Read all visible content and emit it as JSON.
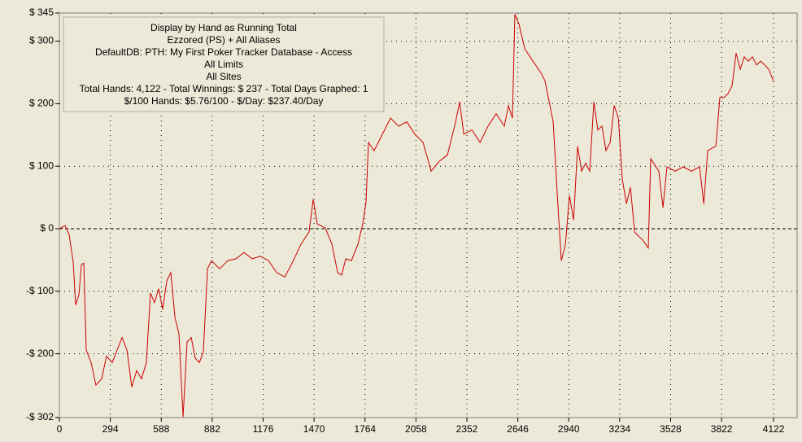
{
  "chart_data": {
    "type": "line",
    "annotations": [
      "Display by Hand as Running Total",
      "Ezzored (PS) + All Aliases",
      "DefaultDB: PTH: My First Poker Tracker Database - Access",
      "All Limits",
      "All Sites",
      "Total Hands: 4,122 - Total Winnings: $ 237 - Total Days Graphed: 1",
      "$/100 Hands: $5.76/100 - $/Day: $237.40/Day"
    ],
    "x": [
      0,
      33,
      56,
      80,
      94,
      113,
      127,
      141,
      155,
      183,
      211,
      244,
      272,
      305,
      333,
      362,
      390,
      418,
      446,
      474,
      502,
      526,
      549,
      573,
      596,
      620,
      643,
      667,
      690,
      714,
      737,
      761,
      784,
      808,
      831,
      855,
      878,
      925,
      972,
      1019,
      1066,
      1113,
      1160,
      1207,
      1254,
      1301,
      1347,
      1394,
      1441,
      1465,
      1488,
      1535,
      1573,
      1606,
      1629,
      1653,
      1686,
      1723,
      1751,
      1770,
      1784,
      1817,
      1864,
      1911,
      1958,
      2005,
      2052,
      2099,
      2146,
      2193,
      2240,
      2287,
      2310,
      2334,
      2381,
      2428,
      2474,
      2521,
      2568,
      2592,
      2615,
      2629,
      2653,
      2686,
      2733,
      2780,
      2803,
      2827,
      2850,
      2874,
      2897,
      2921,
      2944,
      2968,
      2991,
      3014,
      3038,
      3061,
      3085,
      3108,
      3132,
      3155,
      3179,
      3202,
      3226,
      3249,
      3273,
      3296,
      3320,
      3343,
      3367,
      3399,
      3413,
      3460,
      3484,
      3507,
      3554,
      3601,
      3648,
      3695,
      3719,
      3742,
      3789,
      3812,
      3836,
      3859,
      3883,
      3906,
      3930,
      3953,
      3977,
      4000,
      4024,
      4047,
      4071,
      4094,
      4122
    ],
    "series": [
      {
        "color": "#cc0000",
        "values": [
          0,
          5,
          -9,
          -53,
          -122,
          -105,
          -57,
          -55,
          -194,
          -214,
          -250,
          -240,
          -204,
          -214,
          -194,
          -174,
          -194,
          -253,
          -227,
          -240,
          -214,
          -103,
          -118,
          -96,
          -129,
          -83,
          -70,
          -142,
          -168,
          -301,
          -181,
          -174,
          -207,
          -214,
          -197,
          -64,
          -51,
          -64,
          -51,
          -48,
          -38,
          -48,
          -44,
          -51,
          -70,
          -77,
          -53,
          -25,
          -5,
          47,
          8,
          1,
          -25,
          -70,
          -74,
          -48,
          -51,
          -25,
          8,
          43,
          138,
          125,
          151,
          177,
          164,
          171,
          151,
          138,
          92,
          108,
          118,
          171,
          203,
          151,
          158,
          138,
          164,
          184,
          164,
          197,
          177,
          343,
          327,
          288,
          268,
          249,
          236,
          203,
          171,
          53,
          -51,
          -25,
          53,
          14,
          132,
          92,
          105,
          92,
          203,
          158,
          164,
          125,
          138,
          197,
          177,
          79,
          40,
          66,
          -5,
          -12,
          -18,
          -31,
          112,
          92,
          34,
          99,
          92,
          99,
          92,
          99,
          40,
          125,
          132,
          210,
          210,
          216,
          229,
          281,
          255,
          275,
          268,
          275,
          262,
          268,
          262,
          255,
          236
        ]
      }
    ],
    "xlim": [
      0,
      4258
    ],
    "ylim": [
      -302,
      345
    ],
    "xticks": [
      0,
      294,
      588,
      882,
      1176,
      1470,
      1764,
      2058,
      2352,
      2646,
      2940,
      3234,
      3528,
      3822,
      4122
    ],
    "yticks": [
      {
        "value": -302,
        "label": "-$ 302"
      },
      {
        "value": -200,
        "label": "-$ 200"
      },
      {
        "value": -100,
        "label": "-$ 100"
      },
      {
        "value": 0,
        "label": "$ 0"
      },
      {
        "value": 100,
        "label": "$ 100"
      },
      {
        "value": 200,
        "label": "$ 200"
      },
      {
        "value": 300,
        "label": "$ 300"
      },
      {
        "value": 345,
        "label": "$ 345"
      }
    ],
    "grid": true
  }
}
